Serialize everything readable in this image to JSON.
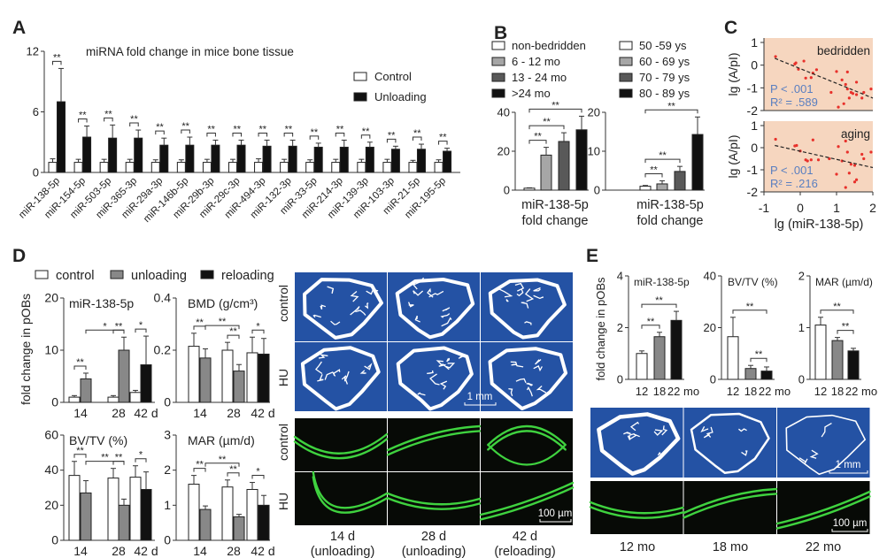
{
  "panel_letters": [
    "A",
    "B",
    "C",
    "D",
    "E"
  ],
  "colors": {
    "control": "#ffffff",
    "unloading": "#888888",
    "reloading": "#111111",
    "scatter_bg": "#f6d6bf",
    "scatter_point": "#e8312b",
    "stat_text": "#5a7fc0",
    "microct_bg": "#2452a4",
    "fluorescence_green": "#3fd23f"
  },
  "chart_data": [
    {
      "panel": "A",
      "type": "bar",
      "title": "miRNA fold change in mice bone tissue",
      "categories": [
        "miR-138-5p",
        "miR-154-5p",
        "miR-503-5p",
        "miR-365-3p",
        "miR-29a-3p",
        "miR-146b-5p",
        "miR-29b-3p",
        "miR-29c-3p",
        "miR-494-3p",
        "miR-132-3p",
        "miR-33-5p",
        "miR-214-3p",
        "miR-139-3p",
        "miR-103-3p",
        "miR-21-5p",
        "miR-195-5p"
      ],
      "series": [
        {
          "name": "Control",
          "color": "#ffffff",
          "values": [
            1,
            1,
            1,
            1,
            1,
            1,
            1,
            1,
            1,
            1,
            1,
            1,
            1,
            1,
            1,
            1
          ],
          "errors": [
            0.35,
            0.3,
            0.3,
            0.3,
            0.25,
            0.25,
            0.3,
            0.3,
            0.35,
            0.3,
            0.25,
            0.3,
            0.3,
            0.3,
            0.2,
            0.25
          ]
        },
        {
          "name": "Unloading",
          "color": "#111111",
          "values": [
            7.0,
            3.5,
            3.4,
            3.4,
            2.7,
            2.7,
            2.7,
            2.7,
            2.6,
            2.6,
            2.5,
            2.5,
            2.5,
            2.3,
            2.3,
            2.1
          ],
          "errors": [
            3.3,
            1.1,
            1.3,
            0.8,
            0.7,
            0.8,
            0.5,
            0.5,
            0.6,
            0.6,
            0.4,
            0.7,
            0.5,
            0.3,
            0.5,
            0.3
          ]
        }
      ],
      "ylim": [
        0,
        12
      ],
      "yticks": [
        "0",
        "6",
        "12"
      ],
      "significance_label": "**",
      "legend": "top-right"
    },
    {
      "panel": "B-left",
      "type": "bar",
      "categories": [
        "non-bedridden",
        "6 - 12 mo",
        "13 - 24 mo",
        ">24 mo"
      ],
      "colors": [
        "#ffffff",
        "#a6a6a6",
        "#595959",
        "#111111"
      ],
      "values": [
        1.0,
        18,
        25,
        31
      ],
      "errors": [
        0.2,
        4,
        4.5,
        7
      ],
      "ylim": [
        0,
        40
      ],
      "yticks": [
        "0",
        "20",
        "40"
      ],
      "xlabel": [
        "miR-138-5p",
        "fold change"
      ],
      "significance": [
        {
          "between": [
            0,
            1
          ],
          "label": "**"
        },
        {
          "between": [
            0,
            2
          ],
          "label": "**"
        },
        {
          "between": [
            0,
            3
          ],
          "label": "**"
        }
      ],
      "legend": "top"
    },
    {
      "panel": "B-right",
      "type": "bar",
      "categories": [
        "50 -59 ys",
        "60 - 69 ys",
        "70 - 79 ys",
        "80 - 89 ys"
      ],
      "colors": [
        "#ffffff",
        "#a6a6a6",
        "#595959",
        "#111111"
      ],
      "values": [
        1.0,
        1.6,
        4.8,
        14.3
      ],
      "errors": [
        0.2,
        0.8,
        1.3,
        4.5
      ],
      "ylim": [
        0,
        20
      ],
      "yticks": [
        "0",
        "10",
        "20"
      ],
      "xlabel": [
        "miR-138-5p",
        "fold change"
      ],
      "significance": [
        {
          "between": [
            0,
            1
          ],
          "label": "**"
        },
        {
          "between": [
            0,
            2
          ],
          "label": "**"
        },
        {
          "between": [
            0,
            3
          ],
          "label": "**"
        }
      ],
      "legend": "top"
    },
    {
      "panel": "C-top",
      "type": "scatter",
      "group_label": "bedridden",
      "ylabel": "lg (A/pI)",
      "xlim": [
        -1,
        2
      ],
      "ylim": [
        -2,
        1
      ],
      "yticks": [
        "1",
        "0",
        "-1",
        "-2"
      ],
      "stats": [
        "P < .001",
        "R² = .589"
      ],
      "points": [
        [
          -0.68,
          0.38
        ],
        [
          -0.15,
          0.05
        ],
        [
          -0.12,
          0.1
        ],
        [
          0.1,
          0.18
        ],
        [
          -0.05,
          -0.18
        ],
        [
          0.15,
          -0.57
        ],
        [
          0.3,
          -0.55
        ],
        [
          0.35,
          -0.35
        ],
        [
          0.45,
          -0.2
        ],
        [
          0.85,
          -1.2
        ],
        [
          1.0,
          -0.28
        ],
        [
          1.05,
          -1.85
        ],
        [
          1.15,
          -0.65
        ],
        [
          1.2,
          -1.7
        ],
        [
          1.25,
          -0.85
        ],
        [
          1.3,
          -1.05
        ],
        [
          1.3,
          -0.3
        ],
        [
          1.35,
          -1.45
        ],
        [
          1.4,
          -1.2
        ],
        [
          1.45,
          -1.25
        ],
        [
          1.55,
          -0.75
        ],
        [
          1.55,
          -1.3
        ],
        [
          1.7,
          -1.45
        ],
        [
          1.75,
          -1.2
        ],
        [
          1.95,
          -1.05
        ]
      ],
      "trend": [
        [
          -0.7,
          0.3
        ],
        [
          2.0,
          -1.45
        ]
      ]
    },
    {
      "panel": "C-bottom",
      "type": "scatter",
      "group_label": "aging",
      "ylabel": "lg (A/pI)",
      "xlabel": "lg (miR-138-5p)",
      "xlim": [
        -1,
        2
      ],
      "ylim": [
        -2,
        1
      ],
      "yticks": [
        "1",
        "0",
        "-1",
        "-2"
      ],
      "xticks": [
        "-1",
        "0",
        "1",
        "2"
      ],
      "stats": [
        "P < .001",
        "R² = .216"
      ],
      "points": [
        [
          -0.68,
          0.38
        ],
        [
          -0.15,
          0.08
        ],
        [
          -0.1,
          0.1
        ],
        [
          0.0,
          -0.15
        ],
        [
          0.15,
          -0.55
        ],
        [
          0.2,
          -0.6
        ],
        [
          0.3,
          -0.55
        ],
        [
          0.35,
          0.35
        ],
        [
          0.5,
          -0.55
        ],
        [
          0.8,
          -0.5
        ],
        [
          1.0,
          -1.2
        ],
        [
          1.05,
          0.05
        ],
        [
          1.15,
          -0.6
        ],
        [
          1.25,
          0.3
        ],
        [
          1.25,
          -1.8
        ],
        [
          1.3,
          -0.2
        ],
        [
          1.35,
          -1.15
        ],
        [
          1.4,
          -0.75
        ],
        [
          1.5,
          -0.8
        ],
        [
          1.5,
          -1.55
        ],
        [
          1.55,
          -1.45
        ],
        [
          1.7,
          -0.3
        ],
        [
          1.75,
          -0.5
        ],
        [
          1.95,
          -0.2
        ]
      ],
      "trend": [
        [
          -0.7,
          0.1
        ],
        [
          2.0,
          -0.9
        ]
      ]
    },
    {
      "panel": "D-1",
      "type": "bar",
      "title": "miR-138-5p",
      "ylabel": "fold change in pOBs",
      "ylim": [
        0,
        20
      ],
      "yticks": [
        "0",
        "10",
        "20"
      ],
      "xticks": [
        "14",
        "28",
        "42 d"
      ],
      "bars": [
        {
          "group": "14",
          "condition": "control",
          "value": 1.0,
          "error": 0.3
        },
        {
          "group": "14",
          "condition": "unloading",
          "value": 4.5,
          "error": 1.1
        },
        {
          "group": "28",
          "condition": "control",
          "value": 1.0,
          "error": 0.3
        },
        {
          "group": "28",
          "condition": "unloading",
          "value": 10.0,
          "error": 2.5
        },
        {
          "group": "42 d",
          "condition": "control",
          "value": 1.9,
          "error": 0.4
        },
        {
          "group": "42 d",
          "condition": "reloading",
          "value": 7.2,
          "error": 5.5
        }
      ],
      "significance": [
        {
          "between": [
            0,
            1
          ],
          "label": "**"
        },
        {
          "between": [
            2,
            3
          ],
          "label": "**"
        },
        {
          "between": [
            1,
            3
          ],
          "label": "*"
        },
        {
          "between": [
            4,
            5
          ],
          "label": "*"
        }
      ]
    },
    {
      "panel": "D-2",
      "type": "bar",
      "title": "BMD (g/cm³)",
      "ylim": [
        0,
        0.4
      ],
      "yticks": [
        "0",
        "0.2",
        "0.4"
      ],
      "xticks": [
        "14",
        "28",
        "42 d"
      ],
      "bars": [
        {
          "group": "14",
          "condition": "control",
          "value": 0.215,
          "error": 0.05
        },
        {
          "group": "14",
          "condition": "unloading",
          "value": 0.17,
          "error": 0.035
        },
        {
          "group": "28",
          "condition": "control",
          "value": 0.2,
          "error": 0.03
        },
        {
          "group": "28",
          "condition": "unloading",
          "value": 0.12,
          "error": 0.025
        },
        {
          "group": "42 d",
          "condition": "control",
          "value": 0.19,
          "error": 0.06
        },
        {
          "group": "42 d",
          "condition": "reloading",
          "value": 0.185,
          "error": 0.06
        }
      ],
      "significance": [
        {
          "between": [
            0,
            1
          ],
          "label": "**"
        },
        {
          "between": [
            2,
            3
          ],
          "label": "**"
        },
        {
          "between": [
            1,
            3
          ],
          "label": "**"
        },
        {
          "between": [
            4,
            5
          ],
          "label": "*"
        }
      ]
    },
    {
      "panel": "D-3",
      "type": "bar",
      "title": "BV/TV (%)",
      "ylim": [
        0,
        60
      ],
      "yticks": [
        "0",
        "20",
        "40",
        "60"
      ],
      "xticks": [
        "14",
        "28",
        "42 d"
      ],
      "bars": [
        {
          "group": "14",
          "condition": "control",
          "value": 37,
          "error": 8
        },
        {
          "group": "14",
          "condition": "unloading",
          "value": 27,
          "error": 7
        },
        {
          "group": "28",
          "condition": "control",
          "value": 35.5,
          "error": 5.5
        },
        {
          "group": "28",
          "condition": "unloading",
          "value": 20,
          "error": 3.5
        },
        {
          "group": "42 d",
          "condition": "control",
          "value": 36,
          "error": 6.5
        },
        {
          "group": "42 d",
          "condition": "reloading",
          "value": 29,
          "error": 10
        }
      ],
      "significance": [
        {
          "between": [
            0,
            1
          ],
          "label": "**"
        },
        {
          "between": [
            2,
            3
          ],
          "label": "**"
        },
        {
          "between": [
            1,
            3
          ],
          "label": "**"
        },
        {
          "between": [
            4,
            5
          ],
          "label": "*"
        }
      ]
    },
    {
      "panel": "D-4",
      "type": "bar",
      "title": "MAR (µm/d)",
      "ylim": [
        0,
        3
      ],
      "yticks": [
        "0",
        "1",
        "2",
        "3"
      ],
      "xticks": [
        "14",
        "28",
        "42 d"
      ],
      "bars": [
        {
          "group": "14",
          "condition": "control",
          "value": 1.6,
          "error": 0.25
        },
        {
          "group": "14",
          "condition": "unloading",
          "value": 0.88,
          "error": 0.1
        },
        {
          "group": "28",
          "condition": "control",
          "value": 1.52,
          "error": 0.2
        },
        {
          "group": "28",
          "condition": "unloading",
          "value": 0.67,
          "error": 0.07
        },
        {
          "group": "42 d",
          "condition": "control",
          "value": 1.45,
          "error": 0.2
        },
        {
          "group": "42 d",
          "condition": "reloading",
          "value": 1.0,
          "error": 0.28
        }
      ],
      "significance": [
        {
          "between": [
            0,
            1
          ],
          "label": "**"
        },
        {
          "between": [
            2,
            3
          ],
          "label": "**"
        },
        {
          "between": [
            1,
            3
          ],
          "label": "**"
        },
        {
          "between": [
            4,
            5
          ],
          "label": "*"
        }
      ]
    },
    {
      "panel": "E-1",
      "type": "bar",
      "title": "miR-138-5p",
      "ylabel": "fold change in pOBs",
      "ylim": [
        0,
        4
      ],
      "yticks": [
        "0",
        "2",
        "4"
      ],
      "xticks": [
        "12",
        "18",
        "22 mo"
      ],
      "bars": [
        {
          "group": "12",
          "condition": "control",
          "value": 1.0,
          "error": 0.1
        },
        {
          "group": "18",
          "condition": "unloading",
          "value": 1.65,
          "error": 0.17
        },
        {
          "group": "22 mo",
          "condition": "reloading",
          "value": 2.28,
          "error": 0.35
        }
      ],
      "significance": [
        {
          "between": [
            0,
            1
          ],
          "label": "**"
        },
        {
          "between": [
            0,
            2
          ],
          "label": "**"
        }
      ]
    },
    {
      "panel": "E-2",
      "type": "bar",
      "title": "BV/TV (%)",
      "ylim": [
        0,
        40
      ],
      "yticks": [
        "0",
        "20",
        "40"
      ],
      "xticks": [
        "12",
        "18",
        "22 mo"
      ],
      "bars": [
        {
          "group": "12",
          "condition": "control",
          "value": 16.5,
          "error": 7.5
        },
        {
          "group": "18",
          "condition": "unloading",
          "value": 4.2,
          "error": 1.2
        },
        {
          "group": "22 mo",
          "condition": "reloading",
          "value": 3.2,
          "error": 1.6
        }
      ],
      "significance": [
        {
          "between": [
            1,
            2
          ],
          "label": "**"
        },
        {
          "between": [
            0,
            2
          ],
          "label": "**"
        }
      ]
    },
    {
      "panel": "E-3",
      "type": "bar",
      "title": "MAR (µm/d)",
      "ylim": [
        0,
        2
      ],
      "yticks": [
        "0",
        "1",
        "2"
      ],
      "xticks": [
        "12",
        "18",
        "22 mo"
      ],
      "bars": [
        {
          "group": "12",
          "condition": "control",
          "value": 1.05,
          "error": 0.15
        },
        {
          "group": "18",
          "condition": "unloading",
          "value": 0.75,
          "error": 0.06
        },
        {
          "group": "22 mo",
          "condition": "reloading",
          "value": 0.55,
          "error": 0.05
        }
      ],
      "significance": [
        {
          "between": [
            1,
            2
          ],
          "label": "**"
        },
        {
          "between": [
            0,
            2
          ],
          "label": "**"
        }
      ]
    }
  ],
  "panelD": {
    "legend": [
      "control",
      "unloading",
      "reloading"
    ],
    "row_labels": [
      "control",
      "HU",
      "control",
      "HU"
    ],
    "captions": [
      [
        "14 d",
        "(unloading)"
      ],
      [
        "28 d",
        "(unloading)"
      ],
      [
        "42 d",
        "(reloading)"
      ]
    ],
    "scale_bars": [
      "1 mm",
      "100 µm"
    ]
  },
  "panelE": {
    "captions": [
      "12 mo",
      "18 mo",
      "22 mo"
    ],
    "scale_bars": [
      "1 mm",
      "100 µm"
    ]
  }
}
